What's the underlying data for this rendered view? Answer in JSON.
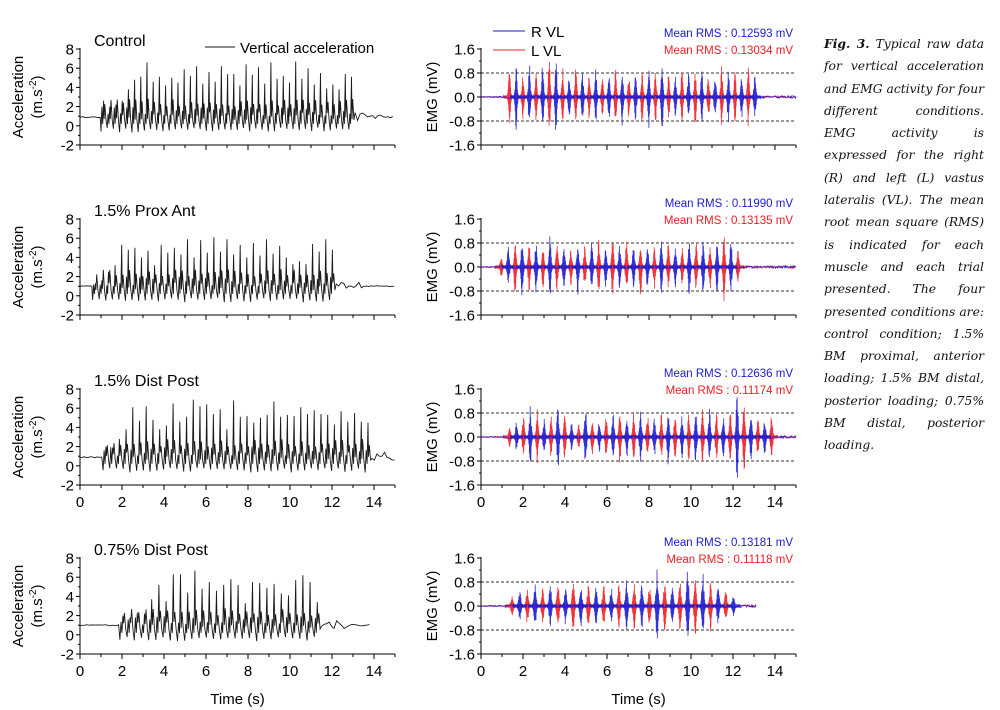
{
  "caption": {
    "label": "Fig. 3.",
    "text": "Typical raw data for vertical acceleration and EMG activity for four different conditions. EMG activity is expressed for the right (R) and left (L) vastus lateralis (VL). The mean root mean square (RMS) is indicated for each muscle and each trial presented. The four presented conditions are: control condition; 1.5% BM proximal, anterior loading; 1.5% BM distal, posterior loading; 0.75% BM distal, posterior loading."
  },
  "colors": {
    "acceleration": "#1a1a1a",
    "r_vl": "#1a1ad0",
    "l_vl": "#ee1c24",
    "axis": "#000000",
    "grid_dashed": "#333333"
  },
  "chart_data": [
    {
      "type": "line",
      "panel": "acceleration",
      "condition": "Control",
      "title": "Control",
      "legend": [
        "Vertical acceleration"
      ],
      "legend_position": "top-right",
      "xlabel": "",
      "ylabel": "Acceleration (m.s-2)",
      "ylabel_line1": "Acceleration",
      "ylabel_line2": "(m.s",
      "ylabel_sup": "-2",
      "ylabel_close": ")",
      "xlim": [
        0,
        15
      ],
      "ylim": [
        -2,
        8
      ],
      "xticks": [
        "0",
        "2",
        "4",
        "6",
        "8",
        "10",
        "12",
        "14"
      ],
      "show_xtick_labels": false,
      "yticks": [
        "-2",
        "0",
        "2",
        "4",
        "6",
        "8"
      ],
      "baseline": 0.9,
      "active_range": [
        1.0,
        13.1
      ],
      "peak_values": [
        2.6,
        2.0,
        2.2,
        2.6,
        3.8,
        4.8,
        5.1,
        6.6,
        4.6,
        5.1,
        4.2,
        5.0,
        4.5,
        5.9,
        5.2,
        6.2,
        4.4,
        5.6,
        4.6,
        6.2,
        5.4,
        5.4,
        4.2,
        6.4,
        5.3,
        6.1,
        4.4,
        6.6,
        4.9,
        5.2,
        4.5,
        6.7,
        4.9,
        6.0,
        4.3,
        5.5,
        3.9,
        4.3,
        3.8,
        5.4,
        5.1
      ]
    },
    {
      "type": "line",
      "panel": "emg",
      "condition": "Control",
      "legend": [
        "R VL",
        "L VL"
      ],
      "legend_position": "top-left",
      "annotations": [
        "Mean RMS : 0.12593 mV",
        "Mean RMS : 0.13034 mV"
      ],
      "rms_r_vl_mV": 0.12593,
      "rms_l_vl_mV": 0.13034,
      "xlabel": "",
      "ylabel": "EMG (mV)",
      "xlim": [
        0,
        15
      ],
      "ylim": [
        -1.6,
        1.6
      ],
      "xticks": [
        "0",
        "2",
        "4",
        "6",
        "8",
        "10",
        "12",
        "14"
      ],
      "show_xtick_labels": false,
      "yticks": [
        "-1.6",
        "-0.8",
        "0.0",
        "0.8",
        "1.6"
      ],
      "dashed_lines": [
        0.8,
        -0.8
      ],
      "active_range": [
        1.2,
        13.2
      ],
      "burst_amplitudes": [
        0.9,
        1.1,
        0.7,
        1.1,
        0.9,
        1.1,
        1.4,
        1.2,
        1.0,
        0.7,
        1.0,
        0.8,
        0.7,
        0.9,
        0.6,
        0.8,
        0.9,
        1.0,
        0.7,
        0.8,
        0.9,
        1.0,
        0.9,
        1.1,
        0.8,
        0.7,
        0.9,
        0.8,
        1.0,
        0.9,
        0.7,
        0.8,
        1.0,
        0.9,
        0.8,
        0.7,
        1.0,
        0.8
      ]
    },
    {
      "type": "line",
      "panel": "acceleration",
      "condition": "1.5% Prox Ant",
      "title": "1.5% Prox Ant",
      "xlabel": "",
      "ylabel": "Acceleration (m.s-2)",
      "ylabel_line1": "Acceleration",
      "ylabel_line2": "(m.s",
      "ylabel_sup": "-2",
      "ylabel_close": ")",
      "xlim": [
        0,
        15
      ],
      "ylim": [
        -2,
        8
      ],
      "xticks": [
        "0",
        "2",
        "4",
        "6",
        "8",
        "10",
        "12",
        "14"
      ],
      "show_xtick_labels": false,
      "yticks": [
        "-2",
        "0",
        "2",
        "4",
        "6",
        "8"
      ],
      "baseline": 1.0,
      "active_range": [
        0.6,
        12.2
      ],
      "peak_values": [
        1.3,
        1.6,
        2.5,
        3.2,
        5.3,
        4.8,
        5.0,
        4.0,
        4.7,
        3.2,
        5.3,
        4.5,
        5.0,
        4.3,
        5.9,
        4.0,
        5.8,
        4.5,
        6.1,
        4.6,
        5.9,
        4.3,
        5.3,
        4.0,
        5.5,
        4.2,
        5.9,
        4.4,
        5.2,
        4.0,
        3.3,
        3.6,
        3.3,
        5.4,
        4.6,
        5.9,
        4.8
      ]
    },
    {
      "type": "line",
      "panel": "emg",
      "condition": "1.5% Prox Ant",
      "annotations": [
        "Mean RMS : 0.11990 mV",
        "Mean RMS : 0.13135 mV"
      ],
      "rms_r_vl_mV": 0.1199,
      "rms_l_vl_mV": 0.13135,
      "xlabel": "",
      "ylabel": "EMG (mV)",
      "xlim": [
        0,
        15
      ],
      "ylim": [
        -1.6,
        1.6
      ],
      "xticks": [
        "0",
        "2",
        "4",
        "6",
        "8",
        "10",
        "12",
        "14"
      ],
      "show_xtick_labels": false,
      "yticks": [
        "-1.6",
        "-0.8",
        "0.0",
        "0.8",
        "1.6"
      ],
      "dashed_lines": [
        0.8,
        -0.8
      ],
      "active_range": [
        0.8,
        12.4
      ],
      "burst_amplitudes": [
        0.3,
        0.7,
        0.9,
        1.0,
        0.8,
        0.9,
        0.7,
        1.0,
        0.8,
        0.7,
        0.6,
        0.9,
        0.7,
        0.8,
        0.9,
        0.7,
        1.0,
        0.8,
        0.9,
        0.7,
        1.0,
        0.8,
        0.7,
        0.9,
        0.8,
        0.7,
        0.6,
        1.0,
        0.8,
        0.9,
        0.7,
        0.8,
        1.1,
        0.8,
        0.6
      ]
    },
    {
      "type": "line",
      "panel": "acceleration",
      "condition": "1.5% Dist Post",
      "title": "1.5% Dist Post",
      "xlabel": "",
      "ylabel": "Acceleration (m.s-2)",
      "ylabel_line1": "Acceleration",
      "ylabel_line2": "(m.s",
      "ylabel_sup": "-2",
      "ylabel_close": ")",
      "xlim": [
        0,
        15
      ],
      "ylim": [
        -2,
        8
      ],
      "xticks": [
        "0",
        "2",
        "4",
        "6",
        "8",
        "10",
        "12",
        "14"
      ],
      "show_xtick_labels": true,
      "yticks": [
        "-2",
        "0",
        "2",
        "4",
        "6",
        "8"
      ],
      "baseline": 0.9,
      "active_range": [
        1.1,
        13.9
      ],
      "peak_values": [
        2.0,
        1.9,
        2.8,
        3.8,
        6.1,
        4.7,
        6.2,
        4.8,
        3.8,
        4.2,
        6.5,
        4.6,
        5.1,
        6.9,
        6.2,
        6.4,
        5.4,
        5.9,
        3.8,
        6.8,
        5.1,
        5.2,
        4.5,
        5.0,
        5.3,
        6.7,
        5.1,
        5.3,
        5.2,
        6.1,
        5.4,
        5.8,
        5.4,
        5.3,
        4.3,
        5.7,
        4.6,
        5.5,
        4.6,
        4.5
      ]
    },
    {
      "type": "line",
      "panel": "emg",
      "condition": "1.5% Dist Post",
      "annotations": [
        "Mean RMS : 0.12636 mV",
        "Mean RMS : 0.11174 mV"
      ],
      "rms_r_vl_mV": 0.12636,
      "rms_l_vl_mV": 0.11174,
      "xlabel": "",
      "ylabel": "EMG (mV)",
      "xlim": [
        0,
        15
      ],
      "ylim": [
        -1.6,
        1.6
      ],
      "xticks": [
        "0",
        "2",
        "4",
        "6",
        "8",
        "10",
        "12",
        "14"
      ],
      "show_xtick_labels": true,
      "yticks": [
        "-1.6",
        "-0.8",
        "0.0",
        "0.8",
        "1.6"
      ],
      "dashed_lines": [
        0.8,
        -0.8
      ],
      "active_range": [
        1.2,
        14.0
      ],
      "burst_amplitudes": [
        0.3,
        0.5,
        0.7,
        1.0,
        0.9,
        0.6,
        0.7,
        1.2,
        0.8,
        0.5,
        0.4,
        1.0,
        0.6,
        0.5,
        0.7,
        0.8,
        0.9,
        0.7,
        0.8,
        0.9,
        0.8,
        0.7,
        0.8,
        0.9,
        0.8,
        0.7,
        0.8,
        0.9,
        1.0,
        0.9,
        0.8,
        0.7,
        0.9,
        1.5,
        1.3,
        0.8,
        0.7,
        0.6,
        0.7
      ]
    },
    {
      "type": "line",
      "panel": "acceleration",
      "condition": "0.75% Dist Post",
      "title": "0.75% Dist Post",
      "xlabel": "Time (s)",
      "ylabel": "Acceleration (m.s-2)",
      "ylabel_line1": "Acceleration",
      "ylabel_line2": "(m.s",
      "ylabel_sup": "-2",
      "ylabel_close": ")",
      "xlim": [
        0,
        15
      ],
      "ylim": [
        -2,
        8
      ],
      "xticks": [
        "0",
        "2",
        "4",
        "6",
        "8",
        "10",
        "12",
        "14"
      ],
      "show_xtick_labels": true,
      "yticks": [
        "-2",
        "0",
        "2",
        "4",
        "6",
        "8"
      ],
      "baseline": 1.0,
      "active_range": [
        1.9,
        11.5
      ],
      "end_time": 13.8,
      "peak_values": [
        2.0,
        1.8,
        2.3,
        2.2,
        3.7,
        5.2,
        3.5,
        6.3,
        6.3,
        4.4,
        6.7,
        4.8,
        5.5,
        4.6,
        5.2,
        5.8,
        5.2,
        3.3,
        5.5,
        5.4,
        4.9,
        5.3,
        4.3,
        4.1,
        5.7,
        6.2,
        5.5,
        3.4
      ]
    },
    {
      "type": "line",
      "panel": "emg",
      "condition": "0.75% Dist Post",
      "annotations": [
        "Mean RMS : 0.13181 mV",
        "Mean RMS : 0.11118 mV"
      ],
      "rms_r_vl_mV": 0.13181,
      "rms_l_vl_mV": 0.11118,
      "xlabel": "Time (s)",
      "ylabel": "EMG (mV)",
      "xlim": [
        0,
        15
      ],
      "ylim": [
        -1.6,
        1.6
      ],
      "xticks": [
        "0",
        "2",
        "4",
        "6",
        "8",
        "10",
        "12",
        "14"
      ],
      "show_xtick_labels": true,
      "yticks": [
        "-1.6",
        "-0.8",
        "0.0",
        "0.8",
        "1.6"
      ],
      "dashed_lines": [
        0.8,
        -0.8
      ],
      "active_range": [
        1.3,
        12.2
      ],
      "end_time": 13.1,
      "burst_amplitudes": [
        0.3,
        0.5,
        0.6,
        0.7,
        0.6,
        0.7,
        0.8,
        0.6,
        0.9,
        0.7,
        0.7,
        0.6,
        0.7,
        0.6,
        0.7,
        0.8,
        0.8,
        0.8,
        0.7,
        1.2,
        0.8,
        0.6,
        0.8,
        1.4,
        1.0,
        1.1,
        0.8,
        0.7,
        0.5,
        0.3
      ]
    }
  ]
}
